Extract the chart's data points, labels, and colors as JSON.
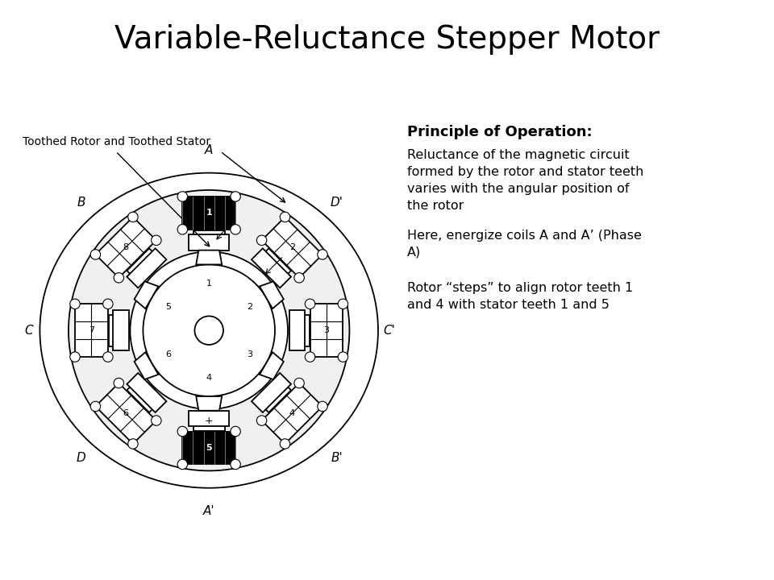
{
  "title": "Variable-Reluctance Stepper Motor",
  "title_fontsize": 28,
  "bg_color": "#ffffff",
  "label_toothed": "Toothed Rotor and Toothed Stator",
  "principle_title": "Principle of Operation:",
  "principle_text1": "Reluctance of the magnetic circuit\nformed by the rotor and stator teeth\nvaries with the angular position of\nthe rotor",
  "principle_text2": "Here, energize coils A and A’ (Phase\nA)",
  "principle_text3": "Rotor “steps” to align rotor teeth 1\nand 4 with stator teeth 1 and 5",
  "pole_angles_deg": [
    90,
    45,
    0,
    -45,
    -90,
    135,
    180,
    225
  ],
  "pole_names": [
    "A",
    "D'",
    "C'",
    "B'",
    "A'",
    "B",
    "C",
    "D"
  ],
  "stator_numbers": [
    "1",
    "2",
    "3",
    "4",
    "5",
    "6",
    "7",
    "8"
  ],
  "rotor_tooth_angles_deg": [
    90,
    30,
    -30,
    -90,
    150,
    210
  ],
  "rotor_tooth_labels": [
    "1",
    "2",
    "3",
    "4",
    "5",
    "6"
  ],
  "energized_indices": [
    0,
    4
  ]
}
